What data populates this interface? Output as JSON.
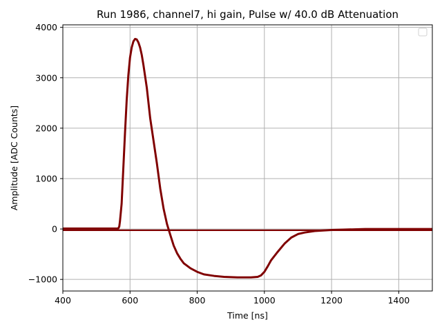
{
  "chart_data": {
    "type": "line",
    "title": "Run 1986, channel7, hi gain, Pulse w/ 40.0 dB Attenuation",
    "xlabel": "Time [ns]",
    "ylabel": "Amplitude [ADC Counts]",
    "xlim": [
      400,
      1500
    ],
    "ylim": [
      -1230,
      4050
    ],
    "xticks": [
      400,
      600,
      800,
      1000,
      1200,
      1400
    ],
    "yticks": [
      -1000,
      0,
      1000,
      2000,
      3000,
      4000
    ],
    "xtick_labels": [
      "400",
      "600",
      "800",
      "1000",
      "1200",
      "1400"
    ],
    "ytick_labels": [
      "−1000",
      "0",
      "1000",
      "2000",
      "3000",
      "4000"
    ],
    "grid": true,
    "legend": "top-right, empty",
    "series_color": "#800000",
    "series": [
      {
        "x": [
          400,
          540,
          565,
          568,
          570,
          575,
          580,
          585,
          590,
          595,
          600,
          605,
          610,
          615,
          620,
          625,
          630,
          635,
          640,
          650,
          660,
          670,
          680,
          690,
          700,
          710,
          720,
          730,
          740,
          750,
          760,
          780,
          800,
          820,
          850,
          880,
          920,
          960,
          980,
          990,
          1000,
          1010,
          1020,
          1040,
          1060,
          1080,
          1100,
          1120,
          1150,
          1200,
          1250,
          1300,
          1400,
          1500
        ],
        "y": [
          10,
          10,
          10,
          50,
          150,
          500,
          1200,
          1900,
          2550,
          3050,
          3400,
          3600,
          3720,
          3770,
          3760,
          3700,
          3600,
          3450,
          3250,
          2800,
          2200,
          1750,
          1300,
          800,
          400,
          100,
          -120,
          -330,
          -480,
          -590,
          -680,
          -780,
          -850,
          -900,
          -930,
          -950,
          -960,
          -960,
          -950,
          -920,
          -850,
          -740,
          -620,
          -450,
          -290,
          -170,
          -100,
          -70,
          -40,
          -20,
          -10,
          0,
          0,
          0
        ]
      },
      {
        "x": [
          400,
          1500
        ],
        "y": [
          -25,
          -25
        ]
      }
    ]
  }
}
